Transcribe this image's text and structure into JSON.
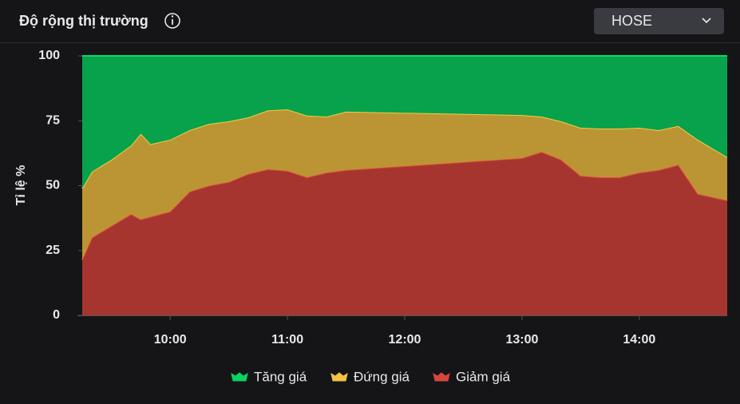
{
  "header": {
    "title": "Độ rộng thị trường",
    "dropdown": "HOSE"
  },
  "chart_data": {
    "type": "stacked-area",
    "y_label": "Tỉ lệ %",
    "x": [
      "09:15",
      "09:20",
      "09:30",
      "09:40",
      "09:45",
      "09:50",
      "10:00",
      "10:10",
      "10:20",
      "10:30",
      "10:40",
      "10:50",
      "11:00",
      "11:10",
      "11:20",
      "11:30",
      "13:00",
      "13:10",
      "13:20",
      "13:30",
      "13:40",
      "13:50",
      "14:00",
      "14:10",
      "14:20",
      "14:30",
      "14:45"
    ],
    "xlim": [
      "09:15",
      "14:45"
    ],
    "xticks": [
      "10:00",
      "11:00",
      "12:00",
      "13:00",
      "14:00"
    ],
    "ylim": [
      0,
      100
    ],
    "yticks": [
      0,
      25,
      50,
      75,
      100
    ],
    "grid": false,
    "legend": "bottom",
    "series": [
      {
        "name": "Tăng giá",
        "color": "#07a24b",
        "values": [
          51,
          44.6,
          40,
          34.5,
          30,
          34,
          32.3,
          28.6,
          26.2,
          25.2,
          23.7,
          21,
          20.6,
          23,
          23.4,
          21.5,
          22.8,
          23.4,
          25.2,
          27.7,
          28,
          28,
          27.7,
          28.6,
          27,
          32.3,
          39
        ]
      },
      {
        "name": "Đứng giá",
        "color": "#bb9533",
        "values": [
          27.5,
          25.4,
          25.5,
          26.5,
          33,
          28,
          27.7,
          23.7,
          23.8,
          23.4,
          21.8,
          22.7,
          23.7,
          23.8,
          21.6,
          22.5,
          16.6,
          13.6,
          14.8,
          18.5,
          18.8,
          18.8,
          17.3,
          15.4,
          15,
          20.9,
          16.7
        ]
      },
      {
        "name": "Giảm giá",
        "color": "#a6352f",
        "values": [
          21.5,
          30,
          34.5,
          39,
          37,
          38,
          40,
          47.7,
          50,
          51.4,
          54.5,
          56.3,
          55.7,
          53.2,
          55,
          56,
          60.6,
          63,
          60,
          53.8,
          53.2,
          53.2,
          55,
          56,
          58,
          46.8,
          44.3
        ]
      }
    ]
  }
}
